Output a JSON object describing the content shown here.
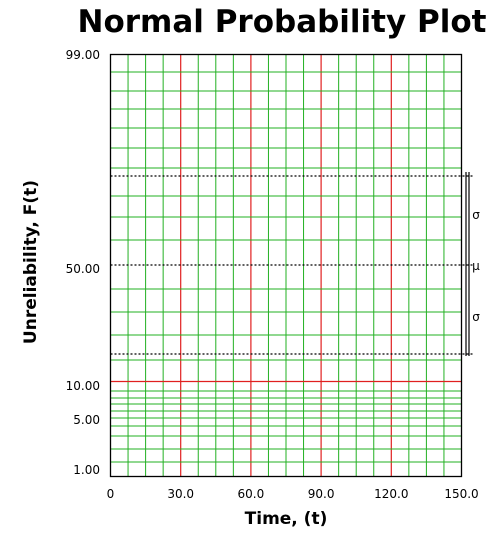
{
  "chart_data": {
    "type": "probability-plot",
    "title": "Normal Probability Plot",
    "xlabel": "Time, (t)",
    "ylabel": "Unreliability, F(t)",
    "xlim": [
      0,
      150
    ],
    "x_ticks": [
      "0",
      "30.0",
      "60.0",
      "90.0",
      "120.0",
      "150.0"
    ],
    "y_ticks": [
      "99.00",
      "50.00",
      "10.00",
      "5.00",
      "1.00"
    ],
    "grid": true,
    "grid_colors": {
      "minor": "#22b022",
      "major": "#e02020"
    },
    "series": [],
    "annotations": {
      "sigma_upper": "σ",
      "mu": "μ",
      "sigma_lower": "σ"
    }
  }
}
